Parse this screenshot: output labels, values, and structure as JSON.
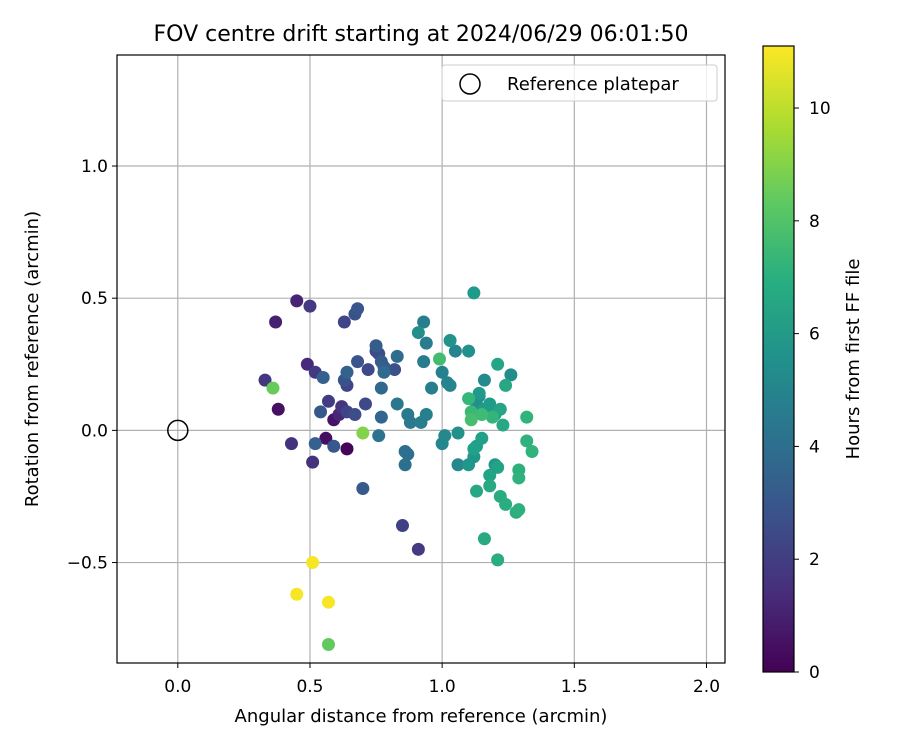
{
  "chart_data": {
    "type": "scatter",
    "title": "FOV centre drift starting at 2024/06/29 06:01:50",
    "xlabel": "Angular distance from reference (arcmin)",
    "ylabel": "Rotation from reference (arcmin)",
    "xlim": [
      -0.23,
      2.07
    ],
    "ylim": [
      -0.88,
      1.42
    ],
    "xticks": [
      0.0,
      0.5,
      1.0,
      1.5,
      2.0
    ],
    "xtick_labels": [
      "0.0",
      "0.5",
      "1.0",
      "1.5",
      "2.0"
    ],
    "yticks": [
      -0.5,
      0.0,
      0.5,
      1.0
    ],
    "ytick_labels": [
      "−0.5",
      "0.0",
      "0.5",
      "1.0"
    ],
    "grid": true,
    "legend": {
      "position": "top-right",
      "entries": [
        "Reference platepar"
      ]
    },
    "reference_point": {
      "x": 0.0,
      "y": 0.0,
      "marker": "open-circle"
    },
    "colorbar": {
      "label": "Hours from first FF file",
      "colormap": "viridis",
      "range": [
        0,
        11.1
      ],
      "ticks": [
        0,
        2,
        4,
        6,
        8,
        10
      ],
      "tick_labels": [
        "0",
        "2",
        "4",
        "6",
        "8",
        "10"
      ]
    },
    "points": [
      {
        "x": 0.64,
        "y": -0.07,
        "c": 0.1
      },
      {
        "x": 0.56,
        "y": -0.03,
        "c": 0.4
      },
      {
        "x": 0.38,
        "y": 0.08,
        "c": 0.5
      },
      {
        "x": 0.59,
        "y": 0.04,
        "c": 0.6
      },
      {
        "x": 0.37,
        "y": 0.41,
        "c": 1.0
      },
      {
        "x": 0.45,
        "y": 0.49,
        "c": 1.1
      },
      {
        "x": 0.61,
        "y": 0.06,
        "c": 1.2
      },
      {
        "x": 0.49,
        "y": 0.25,
        "c": 1.3
      },
      {
        "x": 0.43,
        "y": -0.05,
        "c": 1.6
      },
      {
        "x": 0.51,
        "y": -0.12,
        "c": 1.6
      },
      {
        "x": 0.62,
        "y": 0.09,
        "c": 1.7
      },
      {
        "x": 0.33,
        "y": 0.19,
        "c": 1.8
      },
      {
        "x": 0.5,
        "y": 0.47,
        "c": 1.9
      },
      {
        "x": 0.52,
        "y": 0.22,
        "c": 1.9
      },
      {
        "x": 0.91,
        "y": -0.45,
        "c": 1.9
      },
      {
        "x": 0.57,
        "y": 0.11,
        "c": 2.0
      },
      {
        "x": 0.85,
        "y": -0.36,
        "c": 2.1
      },
      {
        "x": 0.64,
        "y": 0.07,
        "c": 2.2
      },
      {
        "x": 0.64,
        "y": 0.17,
        "c": 2.3
      },
      {
        "x": 0.63,
        "y": 0.41,
        "c": 2.3
      },
      {
        "x": 0.71,
        "y": 0.1,
        "c": 2.4
      },
      {
        "x": 0.72,
        "y": 0.23,
        "c": 2.4
      },
      {
        "x": 0.75,
        "y": 0.3,
        "c": 2.5
      },
      {
        "x": 0.76,
        "y": 0.29,
        "c": 2.6
      },
      {
        "x": 0.67,
        "y": 0.06,
        "c": 2.6
      },
      {
        "x": 0.82,
        "y": 0.23,
        "c": 2.7
      },
      {
        "x": 0.63,
        "y": 0.19,
        "c": 2.8
      },
      {
        "x": 0.67,
        "y": 0.44,
        "c": 2.8
      },
      {
        "x": 0.68,
        "y": 0.26,
        "c": 2.9
      },
      {
        "x": 0.68,
        "y": 0.46,
        "c": 2.9
      },
      {
        "x": 0.54,
        "y": 0.07,
        "c": 3.0
      },
      {
        "x": 0.59,
        "y": -0.06,
        "c": 3.0
      },
      {
        "x": 0.7,
        "y": -0.22,
        "c": 3.1
      },
      {
        "x": 0.75,
        "y": 0.32,
        "c": 3.2
      },
      {
        "x": 0.77,
        "y": 0.26,
        "c": 3.2
      },
      {
        "x": 0.78,
        "y": 0.24,
        "c": 3.3
      },
      {
        "x": 0.52,
        "y": -0.05,
        "c": 3.4
      },
      {
        "x": 0.55,
        "y": 0.2,
        "c": 3.4
      },
      {
        "x": 0.64,
        "y": 0.22,
        "c": 3.5
      },
      {
        "x": 0.77,
        "y": 0.05,
        "c": 3.6
      },
      {
        "x": 0.77,
        "y": 0.16,
        "c": 3.7
      },
      {
        "x": 0.78,
        "y": 0.22,
        "c": 3.8
      },
      {
        "x": 0.83,
        "y": 0.28,
        "c": 3.9
      },
      {
        "x": 0.86,
        "y": -0.08,
        "c": 4.0
      },
      {
        "x": 0.87,
        "y": -0.09,
        "c": 4.0
      },
      {
        "x": 0.86,
        "y": -0.13,
        "c": 4.1
      },
      {
        "x": 0.76,
        "y": -0.02,
        "c": 4.2
      },
      {
        "x": 0.83,
        "y": 0.1,
        "c": 4.4
      },
      {
        "x": 0.88,
        "y": 0.03,
        "c": 4.5
      },
      {
        "x": 0.87,
        "y": 0.06,
        "c": 4.5
      },
      {
        "x": 0.94,
        "y": 0.33,
        "c": 4.6
      },
      {
        "x": 0.93,
        "y": 0.26,
        "c": 4.6
      },
      {
        "x": 0.92,
        "y": 0.03,
        "c": 4.7
      },
      {
        "x": 0.96,
        "y": 0.16,
        "c": 4.7
      },
      {
        "x": 0.94,
        "y": 0.06,
        "c": 4.8
      },
      {
        "x": 0.93,
        "y": 0.41,
        "c": 4.8
      },
      {
        "x": 1.0,
        "y": 0.22,
        "c": 4.9
      },
      {
        "x": 1.02,
        "y": 0.18,
        "c": 5.0
      },
      {
        "x": 1.03,
        "y": 0.17,
        "c": 5.0
      },
      {
        "x": 1.05,
        "y": 0.3,
        "c": 5.0
      },
      {
        "x": 1.0,
        "y": -0.05,
        "c": 5.1
      },
      {
        "x": 1.06,
        "y": -0.13,
        "c": 5.2
      },
      {
        "x": 1.01,
        "y": -0.02,
        "c": 5.2
      },
      {
        "x": 1.14,
        "y": 0.13,
        "c": 5.3
      },
      {
        "x": 1.16,
        "y": 0.19,
        "c": 5.3
      },
      {
        "x": 1.26,
        "y": 0.21,
        "c": 5.4
      },
      {
        "x": 1.13,
        "y": 0.1,
        "c": 5.5
      },
      {
        "x": 0.91,
        "y": 0.37,
        "c": 5.5
      },
      {
        "x": 1.06,
        "y": -0.01,
        "c": 5.6
      },
      {
        "x": 1.1,
        "y": 0.3,
        "c": 5.6
      },
      {
        "x": 1.03,
        "y": 0.34,
        "c": 5.7
      },
      {
        "x": 1.1,
        "y": -0.13,
        "c": 5.8
      },
      {
        "x": 1.12,
        "y": -0.1,
        "c": 5.8
      },
      {
        "x": 1.2,
        "y": -0.13,
        "c": 5.9
      },
      {
        "x": 1.12,
        "y": 0.52,
        "c": 6.0
      },
      {
        "x": 1.14,
        "y": 0.14,
        "c": 6.0
      },
      {
        "x": 1.16,
        "y": 0.08,
        "c": 6.1
      },
      {
        "x": 1.18,
        "y": 0.1,
        "c": 6.1
      },
      {
        "x": 1.2,
        "y": 0.06,
        "c": 6.2
      },
      {
        "x": 1.13,
        "y": -0.06,
        "c": 6.2
      },
      {
        "x": 1.12,
        "y": -0.07,
        "c": 6.3
      },
      {
        "x": 1.15,
        "y": -0.03,
        "c": 6.3
      },
      {
        "x": 1.18,
        "y": -0.17,
        "c": 6.4
      },
      {
        "x": 1.21,
        "y": -0.14,
        "c": 6.4
      },
      {
        "x": 1.21,
        "y": 0.25,
        "c": 6.5
      },
      {
        "x": 1.22,
        "y": 0.08,
        "c": 6.5
      },
      {
        "x": 1.23,
        "y": 0.02,
        "c": 6.6
      },
      {
        "x": 1.24,
        "y": 0.17,
        "c": 6.6
      },
      {
        "x": 1.13,
        "y": -0.23,
        "c": 6.6
      },
      {
        "x": 1.16,
        "y": -0.41,
        "c": 6.7
      },
      {
        "x": 1.18,
        "y": -0.21,
        "c": 6.7
      },
      {
        "x": 1.21,
        "y": -0.49,
        "c": 6.8
      },
      {
        "x": 1.22,
        "y": -0.25,
        "c": 6.8
      },
      {
        "x": 1.24,
        "y": -0.28,
        "c": 6.9
      },
      {
        "x": 1.28,
        "y": -0.31,
        "c": 6.9
      },
      {
        "x": 1.29,
        "y": -0.3,
        "c": 7.0
      },
      {
        "x": 1.29,
        "y": -0.15,
        "c": 7.0
      },
      {
        "x": 1.29,
        "y": -0.18,
        "c": 7.1
      },
      {
        "x": 1.32,
        "y": -0.04,
        "c": 7.1
      },
      {
        "x": 1.34,
        "y": -0.08,
        "c": 7.2
      },
      {
        "x": 1.32,
        "y": 0.05,
        "c": 7.2
      },
      {
        "x": 1.19,
        "y": 0.05,
        "c": 7.3
      },
      {
        "x": 1.1,
        "y": 0.12,
        "c": 7.4
      },
      {
        "x": 1.11,
        "y": 0.07,
        "c": 7.5
      },
      {
        "x": 1.15,
        "y": 0.06,
        "c": 7.6
      },
      {
        "x": 0.99,
        "y": 0.27,
        "c": 7.7
      },
      {
        "x": 1.11,
        "y": 0.04,
        "c": 7.8
      },
      {
        "x": 0.57,
        "y": -0.81,
        "c": 8.4
      },
      {
        "x": 0.36,
        "y": 0.16,
        "c": 8.5
      },
      {
        "x": 0.7,
        "y": -0.01,
        "c": 9.0
      },
      {
        "x": 0.45,
        "y": -0.62,
        "c": 11.0
      },
      {
        "x": 0.51,
        "y": -0.5,
        "c": 11.0
      },
      {
        "x": 0.57,
        "y": -0.65,
        "c": 11.0
      }
    ]
  }
}
